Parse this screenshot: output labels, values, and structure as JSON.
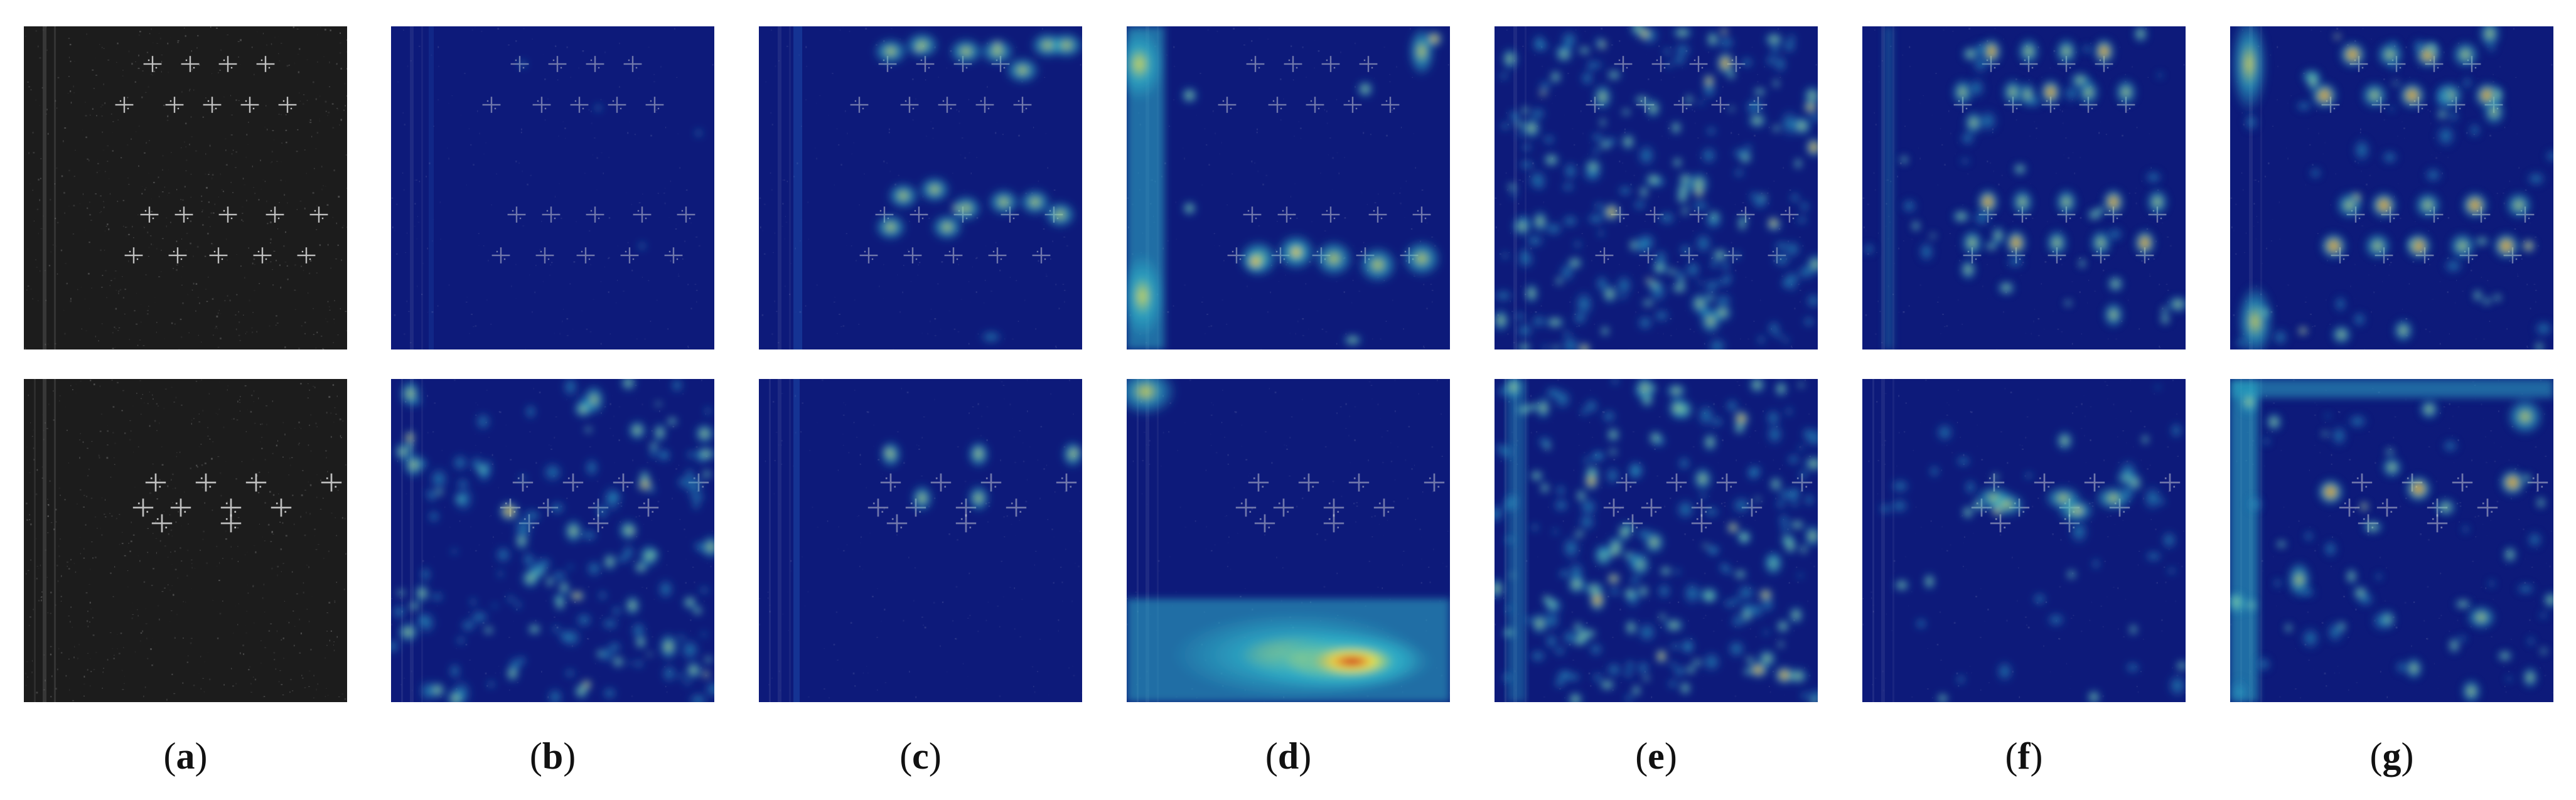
{
  "figure": {
    "captions": [
      {
        "letter": "a"
      },
      {
        "letter": "b"
      },
      {
        "letter": "c"
      },
      {
        "letter": "d"
      },
      {
        "letter": "e"
      },
      {
        "letter": "f"
      },
      {
        "letter": "g"
      }
    ],
    "rows": [
      {
        "name": "top-row",
        "content": "SAR image with multiple ship/target groups"
      },
      {
        "name": "bottom-row",
        "content": "SAR image with single target group"
      }
    ],
    "colors": {
      "background": "#ffffff",
      "sar_base": "#1c1c1c",
      "heatmap_low": "#0d1a7a",
      "heatmap_mid": "#2fb3c9",
      "heatmap_mid2": "#f0e548",
      "heatmap_high": "#c81414"
    },
    "colormap": "jet"
  }
}
